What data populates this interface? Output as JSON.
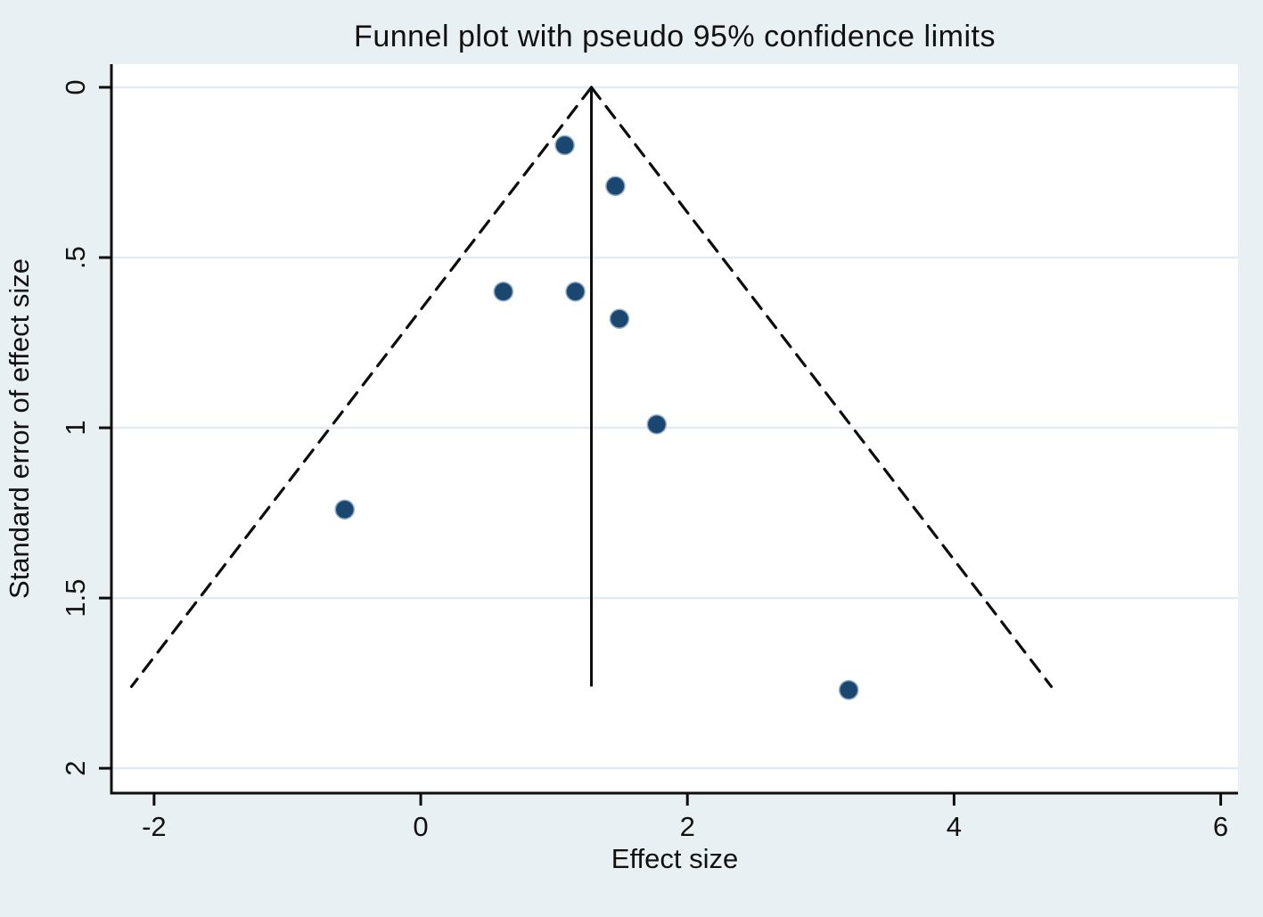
{
  "chart_data": {
    "type": "scatter",
    "subtype": "funnel-plot",
    "title": "Funnel plot with pseudo 95% confidence limits",
    "xlabel": "Effect size",
    "ylabel": "Standard error of effect size",
    "x_ticks": [
      {
        "value": -2,
        "label": "-2"
      },
      {
        "value": 0,
        "label": "0"
      },
      {
        "value": 2,
        "label": "2"
      },
      {
        "value": 4,
        "label": "4"
      },
      {
        "value": 6,
        "label": "6"
      }
    ],
    "y_ticks": [
      {
        "value": 0,
        "label": "0"
      },
      {
        "value": 0.5,
        "label": ".5"
      },
      {
        "value": 1,
        "label": "1"
      },
      {
        "value": 1.5,
        "label": "1.5"
      },
      {
        "value": 2,
        "label": "2"
      }
    ],
    "xlim": [
      -2.32,
      6.13
    ],
    "se_lim": [
      -0.068,
      2.073
    ],
    "y_axis_inverted": true,
    "grid": "horizontal-only",
    "legend": "none",
    "pooled_effect": 1.28,
    "max_se": 1.76,
    "ci_z": 1.96,
    "points": [
      {
        "effect": 1.08,
        "se": 0.17
      },
      {
        "effect": 1.46,
        "se": 0.29
      },
      {
        "effect": 0.62,
        "se": 0.6
      },
      {
        "effect": 1.16,
        "se": 0.6
      },
      {
        "effect": 1.49,
        "se": 0.68
      },
      {
        "effect": 1.77,
        "se": 0.99
      },
      {
        "effect": -0.57,
        "se": 1.24
      },
      {
        "effect": 3.21,
        "se": 1.77
      }
    ],
    "colors": {
      "background": "#e9f0f3",
      "plot_background": "#ffffff",
      "gridline": "#e2ebf1",
      "axis_line": "#0d0d0d",
      "funnel_line": "#0d0d0d",
      "marker_fill": "#1a476f",
      "marker_edge": "#8fabc8",
      "text": "#111111"
    }
  }
}
